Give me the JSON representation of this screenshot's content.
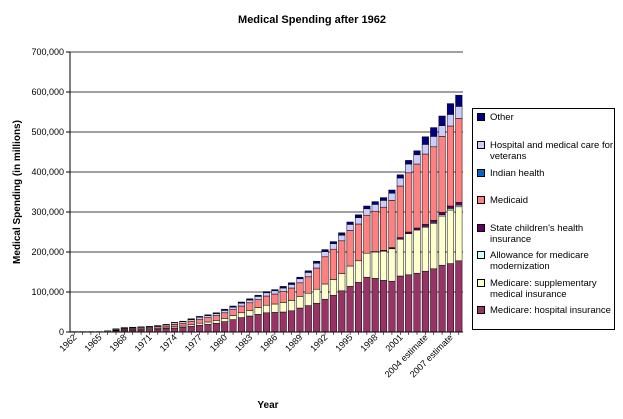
{
  "chart_data": {
    "type": "bar",
    "stacked": true,
    "title": "Medical Spending after 1962",
    "xlabel": "Year",
    "ylabel": "Medical Spending (in millions)",
    "ylim": [
      0,
      700000
    ],
    "yticks": [
      "0",
      "100,000",
      "200,000",
      "300,000",
      "400,000",
      "500,000",
      "600,000",
      "700,000"
    ],
    "ytick_values": [
      0,
      100000,
      200000,
      300000,
      400000,
      500000,
      600000,
      700000
    ],
    "grid": "horizontal",
    "legend_position": "right",
    "categories": [
      "1962",
      "1963",
      "1964",
      "1965",
      "1966",
      "1967",
      "1968",
      "1969",
      "1970",
      "1971",
      "1972",
      "1973",
      "1974",
      "1975",
      "1976",
      "1977",
      "1978",
      "1979",
      "1980",
      "1981",
      "1982",
      "1983",
      "1984",
      "1985",
      "1986",
      "1987",
      "1988",
      "1989",
      "1990",
      "1991",
      "1992",
      "1993",
      "1994",
      "1995",
      "1996",
      "1997",
      "1998",
      "1999",
      "2000",
      "2001",
      "2002",
      "2003",
      "2004 estimate",
      "2005 estimate",
      "2006 estimate",
      "2007 estimate",
      "2008 estimate"
    ],
    "x_tick_labels": [
      "1962",
      "",
      "",
      "1965",
      "",
      "",
      "1968",
      "",
      "",
      "1971",
      "",
      "",
      "1974",
      "",
      "",
      "1977",
      "",
      "",
      "1980",
      "",
      "",
      "1983",
      "",
      "",
      "1986",
      "",
      "",
      "1989",
      "",
      "",
      "1992",
      "",
      "",
      "1995",
      "",
      "",
      "1998",
      "",
      "",
      "2001",
      "",
      "",
      "2004 estimate",
      "",
      "",
      "2007 estimate",
      ""
    ],
    "series": [
      {
        "name": "Medicare: hospital insurance",
        "color": "#993366",
        "values": [
          0,
          0,
          0,
          0,
          1000,
          3000,
          4000,
          5000,
          5000,
          6000,
          7000,
          8000,
          10000,
          12000,
          14000,
          17000,
          19000,
          22000,
          26000,
          31000,
          36000,
          40000,
          44000,
          48000,
          49000,
          50000,
          53000,
          60000,
          66000,
          72000,
          82000,
          92000,
          103000,
          114000,
          124000,
          137000,
          134000,
          129000,
          127000,
          140000,
          143000,
          147000,
          152000,
          158000,
          167000,
          171000,
          178000
        ]
      },
      {
        "name": "Medicare: supplementary medical insurance",
        "color": "#FFFFCC",
        "values": [
          0,
          0,
          0,
          0,
          0,
          1000,
          2000,
          2000,
          2000,
          2000,
          2000,
          2000,
          3000,
          3000,
          4000,
          5000,
          6000,
          7000,
          8000,
          10000,
          12000,
          14000,
          17000,
          19000,
          21000,
          24000,
          26000,
          29000,
          31000,
          35000,
          38000,
          39000,
          43000,
          51000,
          54000,
          60000,
          66000,
          73000,
          81000,
          92000,
          103000,
          108000,
          110000,
          113000,
          123000,
          134000,
          135000
        ]
      },
      {
        "name": "Allowance for medicare modernization",
        "color": "#CCFFFF",
        "values": [
          0,
          0,
          0,
          0,
          0,
          0,
          0,
          0,
          0,
          0,
          0,
          0,
          0,
          0,
          0,
          0,
          0,
          0,
          0,
          0,
          0,
          0,
          0,
          0,
          0,
          0,
          0,
          0,
          0,
          0,
          0,
          0,
          0,
          0,
          0,
          0,
          0,
          0,
          0,
          0,
          0,
          0,
          2000,
          3000,
          3000,
          4000,
          4000
        ]
      },
      {
        "name": "State children's health insurance",
        "color": "#660066",
        "values": [
          0,
          0,
          0,
          0,
          0,
          0,
          0,
          0,
          0,
          0,
          0,
          0,
          0,
          0,
          0,
          0,
          0,
          0,
          0,
          0,
          0,
          0,
          0,
          0,
          0,
          0,
          0,
          0,
          0,
          0,
          0,
          0,
          0,
          0,
          0,
          0,
          1000,
          2000,
          3000,
          4000,
          4000,
          5000,
          5000,
          5000,
          6000,
          6000,
          7000
        ]
      },
      {
        "name": "Medicaid",
        "color": "#FF8080",
        "values": [
          0,
          0,
          0,
          0,
          0,
          1000,
          2000,
          2000,
          3000,
          3000,
          4000,
          5000,
          6000,
          7000,
          9000,
          10000,
          11000,
          12000,
          14000,
          15000,
          17000,
          19000,
          20000,
          23000,
          25000,
          27000,
          31000,
          34000,
          41000,
          53000,
          68000,
          76000,
          82000,
          89000,
          92000,
          95000,
          101000,
          108000,
          118000,
          129000,
          148000,
          160000,
          176000,
          184000,
          190000,
          200000,
          210000
        ]
      },
      {
        "name": "Indian health",
        "color": "#0066CC",
        "values": [
          0,
          0,
          0,
          0,
          0,
          0,
          0,
          0,
          0,
          0,
          0,
          0,
          0,
          0,
          0,
          0,
          0,
          0,
          0,
          0,
          0,
          0,
          0,
          0,
          0,
          0,
          0,
          0,
          0,
          0,
          0,
          0,
          0,
          0,
          0,
          0,
          0,
          0,
          0,
          0,
          0,
          0,
          0,
          0,
          0,
          0,
          0
        ]
      },
      {
        "name": "Hospital and medical care for veterans",
        "color": "#CCCCFF",
        "values": [
          1000,
          1000,
          1000,
          1000,
          2000,
          2000,
          2000,
          2000,
          2000,
          2000,
          2000,
          3000,
          4000,
          4000,
          4000,
          5000,
          5000,
          5000,
          6000,
          6000,
          7000,
          7000,
          8000,
          8000,
          8000,
          9000,
          9000,
          10000,
          11000,
          12000,
          13000,
          14000,
          14000,
          15000,
          16000,
          16000,
          17000,
          17000,
          18000,
          20000,
          22000,
          23000,
          24000,
          26000,
          27000,
          29000,
          30000
        ]
      },
      {
        "name": "Other",
        "color": "#000080",
        "values": [
          0,
          0,
          0,
          0,
          0,
          1000,
          1000,
          1000,
          1000,
          1000,
          1000,
          1000,
          1000,
          1000,
          2000,
          2000,
          2000,
          2000,
          3000,
          3000,
          3000,
          3000,
          3000,
          3000,
          3000,
          4000,
          4000,
          4000,
          4000,
          5000,
          5000,
          5000,
          6000,
          6000,
          7000,
          7000,
          7000,
          7000,
          8000,
          8000,
          9000,
          10000,
          19000,
          22000,
          24000,
          27000,
          28000
        ]
      }
    ]
  }
}
